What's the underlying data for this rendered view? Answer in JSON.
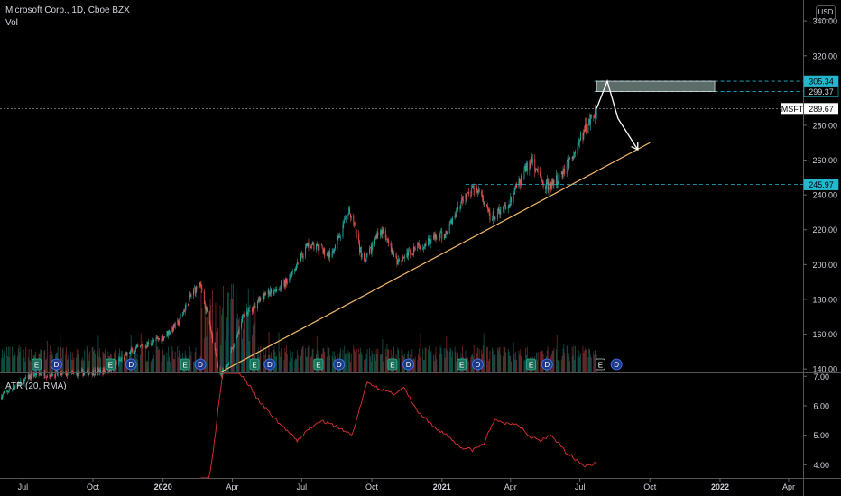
{
  "header": {
    "symbol_line": "Microsoft Corp., 1D, Cboe BZX",
    "volume_label": "Vol",
    "currency": "USD"
  },
  "indicator": {
    "title": "ATR (20, RMA)"
  },
  "colors": {
    "background": "#000000",
    "axis_text": "#d1d4dc",
    "candle_up": "#26a69a",
    "candle_down": "#ef5350",
    "trendline": "#f5b96a",
    "level_line": "#22b8cf",
    "atr_line": "#e03131",
    "projection": "#ffffff",
    "zone_fill": "#6b7f7c"
  },
  "chart_data": [
    {
      "type": "line",
      "name": "price-pane",
      "title": "Microsoft Corp., 1D, Cboe BZX",
      "ylim": [
        138,
        352
      ],
      "price_ticks": [
        "140.00",
        "160.00",
        "180.00",
        "200.00",
        "220.00",
        "240.00",
        "260.00",
        "280.00",
        "300.00",
        "320.00",
        "340.00"
      ],
      "x_ticks": [
        "Jul",
        "Oct",
        "2020",
        "Apr",
        "Jul",
        "Oct",
        "2021",
        "Apr",
        "Jul",
        "Oct",
        "2022",
        "Apr"
      ],
      "x_tick_dates": [
        "2019-07-01",
        "2019-10-01",
        "2020-01-01",
        "2020-04-01",
        "2020-07-01",
        "2020-10-01",
        "2021-01-01",
        "2021-04-01",
        "2021-07-01",
        "2021-10-01",
        "2022-01-01",
        "2022-04-01"
      ],
      "xlim": [
        "2019-06-01",
        "2022-04-20"
      ],
      "price_path": [
        {
          "date": "2019-06-01",
          "close": 124
        },
        {
          "date": "2019-07-15",
          "close": 137
        },
        {
          "date": "2019-09-01",
          "close": 137
        },
        {
          "date": "2019-10-20",
          "close": 139
        },
        {
          "date": "2019-11-20",
          "close": 150
        },
        {
          "date": "2019-12-31",
          "close": 158
        },
        {
          "date": "2020-01-20",
          "close": 166
        },
        {
          "date": "2020-02-10",
          "close": 185
        },
        {
          "date": "2020-02-20",
          "close": 188
        },
        {
          "date": "2020-03-16",
          "close": 136
        },
        {
          "date": "2020-03-23",
          "close": 140
        },
        {
          "date": "2020-04-15",
          "close": 170
        },
        {
          "date": "2020-05-15",
          "close": 183
        },
        {
          "date": "2020-06-10",
          "close": 190
        },
        {
          "date": "2020-07-10",
          "close": 212
        },
        {
          "date": "2020-08-10",
          "close": 205
        },
        {
          "date": "2020-09-02",
          "close": 231
        },
        {
          "date": "2020-09-21",
          "close": 200
        },
        {
          "date": "2020-10-12",
          "close": 221
        },
        {
          "date": "2020-11-02",
          "close": 202
        },
        {
          "date": "2020-12-15",
          "close": 214
        },
        {
          "date": "2021-01-05",
          "close": 217
        },
        {
          "date": "2021-01-27",
          "close": 238
        },
        {
          "date": "2021-02-16",
          "close": 244
        },
        {
          "date": "2021-03-05",
          "close": 227
        },
        {
          "date": "2021-03-25",
          "close": 232
        },
        {
          "date": "2021-04-29",
          "close": 261
        },
        {
          "date": "2021-05-12",
          "close": 247
        },
        {
          "date": "2021-05-25",
          "close": 245
        },
        {
          "date": "2021-06-08",
          "close": 253
        },
        {
          "date": "2021-06-25",
          "close": 265
        },
        {
          "date": "2021-07-10",
          "close": 280
        },
        {
          "date": "2021-07-23",
          "close": 289.67
        }
      ],
      "volume_labels": [
        "Vol"
      ],
      "earnings_markers": {
        "label": "E",
        "dates": [
          "2019-07-19",
          "2019-10-24",
          "2020-01-30",
          "2020-04-30",
          "2020-07-23",
          "2020-10-28",
          "2021-01-27",
          "2021-04-28",
          "2021-07-28"
        ]
      },
      "dividend_markers": {
        "label": "D",
        "dates": [
          "2019-08-14",
          "2019-11-20",
          "2020-02-19",
          "2020-05-20",
          "2020-08-19",
          "2020-11-18",
          "2021-02-17",
          "2021-05-19",
          "2021-08-18"
        ]
      },
      "trendline": {
        "from": {
          "date": "2020-03-16",
          "price": 138
        },
        "to": {
          "date": "2021-10-01",
          "price": 270
        }
      },
      "levels": [
        {
          "label": "305.34",
          "price": 305.34
        },
        {
          "label": "299.37",
          "price": 299.37
        },
        {
          "label": "245.97",
          "price": 245.97
        }
      ],
      "last_price": {
        "symbol": "MSFT",
        "label": "289.67",
        "price": 289.67
      },
      "zone": {
        "from": "2021-07-23",
        "to": "2021-12-25",
        "low": 299.37,
        "high": 305.34
      },
      "projection": [
        {
          "date": "2021-07-23",
          "price": 289.67
        },
        {
          "date": "2021-08-06",
          "price": 305.34
        },
        {
          "date": "2021-08-20",
          "price": 284
        },
        {
          "date": "2021-09-15",
          "price": 266
        }
      ]
    },
    {
      "type": "line",
      "name": "atr-pane",
      "title": "ATR (20, RMA)",
      "ylim": [
        3.55,
        7.1
      ],
      "ticks": [
        "4.00",
        "5.00",
        "6.00",
        "7.00"
      ],
      "values": [
        {
          "date": "2020-02-20",
          "atr": 2.2
        },
        {
          "date": "2020-03-01",
          "atr": 3.5
        },
        {
          "date": "2020-03-08",
          "atr": 4.7
        },
        {
          "date": "2020-03-15",
          "atr": 6.3
        },
        {
          "date": "2020-03-22",
          "atr": 7.6
        },
        {
          "date": "2020-03-29",
          "atr": 8.0
        },
        {
          "date": "2020-04-05",
          "atr": 7.3
        },
        {
          "date": "2020-04-20",
          "atr": 6.8
        },
        {
          "date": "2020-05-05",
          "atr": 6.2
        },
        {
          "date": "2020-05-25",
          "atr": 5.6
        },
        {
          "date": "2020-06-10",
          "atr": 5.2
        },
        {
          "date": "2020-06-25",
          "atr": 4.8
        },
        {
          "date": "2020-07-10",
          "atr": 5.2
        },
        {
          "date": "2020-07-25",
          "atr": 5.5
        },
        {
          "date": "2020-08-15",
          "atr": 5.3
        },
        {
          "date": "2020-09-05",
          "atr": 5.0
        },
        {
          "date": "2020-09-25",
          "atr": 6.8
        },
        {
          "date": "2020-10-10",
          "atr": 6.6
        },
        {
          "date": "2020-10-28",
          "atr": 6.4
        },
        {
          "date": "2020-11-12",
          "atr": 6.6
        },
        {
          "date": "2020-11-30",
          "atr": 5.8
        },
        {
          "date": "2020-12-20",
          "atr": 5.3
        },
        {
          "date": "2021-01-08",
          "atr": 5.0
        },
        {
          "date": "2021-01-25",
          "atr": 4.6
        },
        {
          "date": "2021-02-10",
          "atr": 4.5
        },
        {
          "date": "2021-02-25",
          "atr": 4.7
        },
        {
          "date": "2021-03-10",
          "atr": 5.5
        },
        {
          "date": "2021-03-25",
          "atr": 5.4
        },
        {
          "date": "2021-04-10",
          "atr": 5.4
        },
        {
          "date": "2021-04-25",
          "atr": 5.0
        },
        {
          "date": "2021-05-10",
          "atr": 4.8
        },
        {
          "date": "2021-05-25",
          "atr": 5.0
        },
        {
          "date": "2021-06-10",
          "atr": 4.5
        },
        {
          "date": "2021-06-25",
          "atr": 4.2
        },
        {
          "date": "2021-07-08",
          "atr": 3.95
        },
        {
          "date": "2021-07-23",
          "atr": 4.05
        }
      ]
    }
  ]
}
